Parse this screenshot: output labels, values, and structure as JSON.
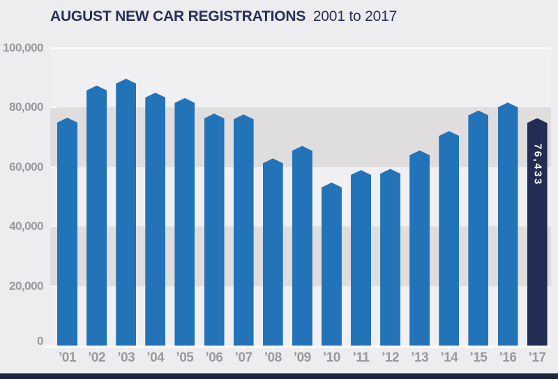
{
  "header": {
    "title_bold": "AUGUST NEW CAR REGISTRATIONS",
    "title_sub": "2001 to 2017"
  },
  "chart_data": {
    "type": "bar",
    "title": "AUGUST NEW CAR REGISTRATIONS 2001 to 2017",
    "categories": [
      "’01",
      "’02",
      "’03",
      "’04",
      "’05",
      "’06",
      "’07",
      "’08",
      "’09",
      "’10",
      "’11",
      "’12",
      "’13",
      "’14",
      "’15",
      "’16",
      "’17"
    ],
    "values": [
      76600,
      87400,
      89700,
      85000,
      83200,
      78000,
      77700,
      62900,
      67100,
      54800,
      59000,
      59400,
      65600,
      72100,
      79000,
      81700,
      76433
    ],
    "highlight": {
      "index": 16,
      "category": "’17",
      "value": 76433,
      "label": "76,433"
    },
    "y_axis": {
      "tick_values": [
        0,
        20000,
        40000,
        60000,
        80000,
        100000
      ],
      "tick_labels": [
        "0",
        "20,000",
        "40,000",
        "60,000",
        "80,000",
        "100,000"
      ],
      "range": [
        0,
        100000
      ]
    },
    "xlabel": "",
    "ylabel": "",
    "shaded_bands": [
      [
        20000,
        40000
      ],
      [
        60000,
        80000
      ]
    ],
    "legend": "none",
    "gridlines": "banded-background",
    "colors": {
      "bar": "#2373b9",
      "highlight_bar": "#232c52",
      "highlight_label_text": "#ffffff",
      "title_text": "#272f5c",
      "axis_text": "#9a999d",
      "page_background": "#edecee",
      "plot_background": "#f0eff1",
      "band": "#dfddde",
      "baseline": "#fbfbfc",
      "footer_strip": "#1b2340"
    }
  }
}
